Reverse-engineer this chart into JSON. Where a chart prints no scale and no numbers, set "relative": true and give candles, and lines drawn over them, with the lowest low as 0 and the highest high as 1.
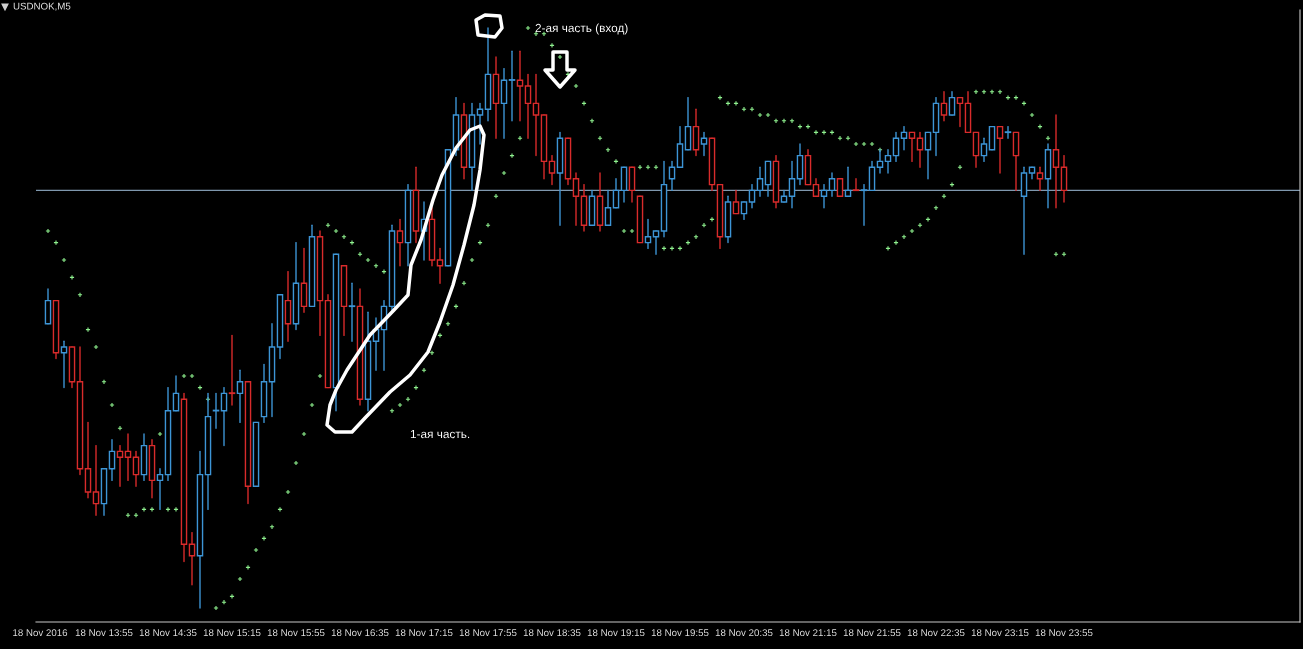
{
  "chart_data": {
    "type": "candlestick",
    "title": "USDNOK,M5",
    "relative": true,
    "tick_labels": "x",
    "categories": [
      "18 Nov 2016",
      null,
      null,
      null,
      null,
      null,
      null,
      null,
      "18 Nov 13:55",
      null,
      null,
      null,
      null,
      null,
      null,
      null,
      "18 Nov 14:35",
      null,
      null,
      null,
      null,
      null,
      null,
      null,
      "18 Nov 15:15",
      null,
      null,
      null,
      null,
      null,
      null,
      null,
      "18 Nov 15:55",
      null,
      null,
      null,
      null,
      null,
      null,
      null,
      "18 Nov 16:35",
      null,
      null,
      null,
      null,
      null,
      null,
      null,
      "18 Nov 17:15",
      null,
      null,
      null,
      null,
      null,
      null,
      null,
      "18 Nov 17:55",
      null,
      null,
      null,
      null,
      null,
      null,
      null,
      "18 Nov 18:35",
      null,
      null,
      null,
      null,
      null,
      null,
      null,
      "18 Nov 19:15",
      null,
      null,
      null,
      null,
      null,
      null,
      null,
      "18 Nov 19:55",
      null,
      null,
      null,
      null,
      null,
      null,
      null,
      "18 Nov 20:35",
      null,
      null,
      null,
      null,
      null,
      null,
      null,
      "18 Nov 21:15",
      null,
      null,
      null,
      null,
      null,
      null,
      null,
      "18 Nov 21:55",
      null,
      null,
      null,
      null,
      null,
      null,
      null,
      "18 Nov 22:35",
      null,
      null,
      null,
      null,
      null,
      null,
      null,
      "18 Nov 23:15",
      null,
      null,
      null,
      null,
      null,
      null,
      null,
      "18 Nov 23:55"
    ],
    "series": [
      {
        "type": "scatter",
        "color": "#8ef08e",
        "marker": "cross",
        "values": [
          null,
          0.65,
          0.63,
          0.6,
          0.57,
          0.54,
          0.48,
          0.45,
          0.39,
          0.35,
          0.31,
          0.16,
          0.16,
          0.17,
          0.17,
          0.3,
          0.17,
          0.17,
          0.4,
          0.4,
          0.38,
          0.36,
          0.0,
          0.01,
          0.02,
          0.05,
          0.07,
          0.1,
          0.12,
          0.14,
          0.17,
          0.2,
          0.25,
          0.3,
          0.35,
          0.4,
          0.66,
          0.65,
          0.64,
          0.63,
          0.61,
          0.6,
          0.59,
          0.58,
          0.34,
          0.35,
          0.36,
          0.38,
          0.41,
          0.44,
          0.47,
          0.49,
          0.52,
          0.56,
          0.6,
          0.63,
          0.66,
          0.71,
          0.75,
          0.78,
          0.81,
          1.0,
          0.99,
          0.99,
          0.97,
          0.95,
          0.92,
          0.9,
          0.87,
          0.84,
          0.81,
          0.79,
          0.77,
          0.65,
          0.65,
          0.76,
          0.76,
          0.76,
          0.62,
          0.62,
          0.62,
          0.63,
          0.64,
          0.66,
          0.67,
          0.88,
          0.87,
          0.87,
          0.86,
          0.86,
          0.85,
          0.85,
          0.84,
          0.84,
          0.84,
          0.83,
          0.83,
          0.82,
          0.82,
          0.82,
          0.81,
          0.81,
          0.8,
          0.8,
          0.8,
          0.79,
          0.62,
          0.63,
          0.64,
          0.65,
          0.66,
          0.67,
          0.69,
          0.71,
          0.73,
          0.76,
          null,
          0.89,
          0.89,
          0.89,
          0.89,
          0.88,
          0.88,
          0.87,
          0.85,
          0.83,
          0.81,
          0.61,
          0.61
        ]
      },
      {
        "ohlc": [
          null,
          [
            0.49,
            0.55,
            0.49,
            0.53
          ],
          [
            0.53,
            0.53,
            0.43,
            0.44
          ],
          [
            0.44,
            0.46,
            0.38,
            0.45
          ],
          [
            0.45,
            0.45,
            0.38,
            0.39
          ],
          [
            0.39,
            0.45,
            0.23,
            0.24
          ],
          [
            0.24,
            0.32,
            0.19,
            0.2
          ],
          [
            0.2,
            0.28,
            0.16,
            0.18
          ],
          [
            0.18,
            0.24,
            0.16,
            0.24
          ],
          [
            0.24,
            0.29,
            0.22,
            0.27
          ],
          [
            0.27,
            0.28,
            0.21,
            0.26
          ],
          [
            0.27,
            0.3,
            0.22,
            0.26
          ],
          [
            0.26,
            0.27,
            0.21,
            0.23
          ],
          [
            0.23,
            0.3,
            0.22,
            0.28
          ],
          [
            0.28,
            0.29,
            0.19,
            0.22
          ],
          [
            0.22,
            0.24,
            0.17,
            0.23
          ],
          [
            0.23,
            0.38,
            0.22,
            0.34
          ],
          [
            0.34,
            0.4,
            0.34,
            0.37
          ],
          [
            0.36,
            0.37,
            0.08,
            0.11
          ],
          [
            0.11,
            0.13,
            0.04,
            0.09
          ],
          [
            0.09,
            0.27,
            0,
            0.23
          ],
          [
            0.23,
            0.37,
            0.17,
            0.33
          ],
          [
            0.34,
            0.37,
            0.31,
            0.34
          ],
          [
            0.34,
            0.38,
            0.28,
            0.37
          ],
          [
            0.37,
            0.47,
            0.35,
            0.37
          ],
          [
            0.37,
            0.41,
            0.32,
            0.39
          ],
          [
            0.39,
            0.39,
            0.18,
            0.21
          ],
          [
            0.21,
            0.32,
            0.21,
            0.32
          ],
          [
            0.33,
            0.42,
            0.32,
            0.39
          ],
          [
            0.39,
            0.49,
            0.33,
            0.45
          ],
          [
            0.45,
            0.54,
            0.43,
            0.54
          ],
          [
            0.53,
            0.58,
            0.46,
            0.49
          ],
          [
            0.49,
            0.63,
            0.48,
            0.56
          ],
          [
            0.56,
            0.62,
            0.51,
            0.52
          ],
          [
            0.52,
            0.66,
            0.52,
            0.64
          ],
          [
            0.64,
            0.65,
            0.47,
            0.53
          ],
          [
            0.53,
            0.54,
            0.38,
            0.38
          ],
          [
            0.38,
            0.61,
            0.34,
            0.61
          ],
          [
            0.59,
            0.59,
            0.47,
            0.52
          ],
          [
            0.52,
            0.56,
            0.46,
            0.52
          ],
          [
            0.52,
            0.55,
            0.35,
            0.36
          ],
          [
            0.36,
            0.51,
            0.34,
            0.46
          ],
          [
            0.46,
            0.5,
            0.41,
            0.48
          ],
          [
            0.48,
            0.53,
            0.41,
            0.52
          ],
          [
            0.52,
            0.66,
            0.51,
            0.65
          ],
          [
            0.65,
            0.67,
            0.59,
            0.63
          ],
          [
            0.63,
            0.73,
            0.59,
            0.72
          ],
          [
            0.72,
            0.76,
            0.63,
            0.65
          ],
          [
            0.65,
            0.7,
            0.6,
            0.67
          ],
          [
            0.67,
            0.69,
            0.59,
            0.6
          ],
          [
            0.6,
            0.62,
            0.56,
            0.59
          ],
          [
            0.59,
            0.79,
            0.59,
            0.79
          ],
          [
            0.79,
            0.88,
            0.78,
            0.85
          ],
          [
            0.85,
            0.87,
            0.74,
            0.76
          ],
          [
            0.76,
            0.87,
            0.72,
            0.85
          ],
          [
            0.85,
            0.87,
            0.8,
            0.86
          ],
          [
            0.86,
            1,
            0.84,
            0.92
          ],
          [
            0.92,
            0.95,
            0.81,
            0.87
          ],
          [
            0.87,
            0.93,
            0.81,
            0.91
          ],
          [
            0.91,
            0.96,
            0.84,
            0.91
          ],
          [
            0.91,
            0.96,
            0.84,
            0.9
          ],
          [
            0.9,
            0.92,
            0.81,
            0.87
          ],
          [
            0.87,
            0.92,
            0.78,
            0.85
          ],
          [
            0.85,
            0.85,
            0.74,
            0.77
          ],
          [
            0.77,
            0.78,
            0.73,
            0.75
          ],
          [
            0.75,
            0.82,
            0.66,
            0.81
          ],
          [
            0.81,
            0.81,
            0.73,
            0.74
          ],
          [
            0.74,
            0.75,
            0.66,
            0.71
          ],
          [
            0.71,
            0.73,
            0.65,
            0.66
          ],
          [
            0.66,
            0.72,
            0.66,
            0.71
          ],
          [
            0.71,
            0.75,
            0.65,
            0.66
          ],
          [
            0.66,
            0.72,
            0.66,
            0.69
          ],
          [
            0.69,
            0.74,
            0.69,
            0.72
          ],
          [
            0.72,
            0.76,
            0.7,
            0.76
          ],
          [
            0.76,
            0.76,
            0.7,
            0.72
          ],
          [
            0.71,
            0.71,
            0.63,
            0.63
          ],
          [
            0.63,
            0.67,
            0.62,
            0.64
          ],
          [
            0.64,
            0.65,
            0.61,
            0.65
          ],
          [
            0.65,
            0.77,
            0.64,
            0.73
          ],
          [
            0.74,
            0.77,
            0.72,
            0.76
          ],
          [
            0.76,
            0.83,
            0.76,
            0.8
          ],
          [
            0.79,
            0.88,
            0.79,
            0.83
          ],
          [
            0.83,
            0.86,
            0.78,
            0.79
          ],
          [
            0.8,
            0.82,
            0.78,
            0.81
          ],
          [
            0.81,
            0.81,
            0.72,
            0.73
          ],
          [
            0.73,
            0.73,
            0.62,
            0.64
          ],
          [
            0.64,
            0.71,
            0.63,
            0.7
          ],
          [
            0.7,
            0.72,
            0.68,
            0.68
          ],
          [
            0.68,
            0.7,
            0.67,
            0.7
          ],
          [
            0.7,
            0.73,
            0.69,
            0.72
          ],
          [
            0.72,
            0.76,
            0.71,
            0.74
          ],
          [
            0.73,
            0.77,
            0.71,
            0.77
          ],
          [
            0.77,
            0.78,
            0.69,
            0.7
          ],
          [
            0.7,
            0.72,
            0.7,
            0.71
          ],
          [
            0.71,
            0.77,
            0.69,
            0.74
          ],
          [
            0.74,
            0.8,
            0.73,
            0.78
          ],
          [
            0.78,
            0.79,
            0.73,
            0.73
          ],
          [
            0.73,
            0.74,
            0.71,
            0.71
          ],
          [
            0.71,
            0.73,
            0.69,
            0.72
          ],
          [
            0.72,
            0.75,
            0.71,
            0.74
          ],
          [
            0.74,
            0.74,
            0.71,
            0.71
          ],
          [
            0.71,
            0.76,
            0.71,
            0.72
          ],
          [
            0.72,
            0.74,
            0.72,
            0.72
          ],
          [
            0.72,
            0.73,
            0.66,
            0.72
          ],
          [
            0.72,
            0.77,
            0.72,
            0.76
          ],
          [
            0.76,
            0.79,
            0.75,
            0.77
          ],
          [
            0.77,
            0.79,
            0.75,
            0.78
          ],
          [
            0.78,
            0.82,
            0.77,
            0.81
          ],
          [
            0.81,
            0.83,
            0.79,
            0.82
          ],
          [
            0.82,
            0.82,
            0.77,
            0.81
          ],
          [
            0.81,
            0.82,
            0.76,
            0.79
          ],
          [
            0.79,
            0.82,
            0.74,
            0.82
          ],
          [
            0.82,
            0.88,
            0.78,
            0.87
          ],
          [
            0.87,
            0.89,
            0.84,
            0.85
          ],
          [
            0.85,
            0.89,
            0.85,
            0.88
          ],
          [
            0.88,
            0.88,
            0.83,
            0.87
          ],
          [
            0.87,
            0.89,
            0.82,
            0.82
          ],
          [
            0.82,
            0.82,
            0.76,
            0.78
          ],
          [
            0.78,
            0.81,
            0.77,
            0.8
          ],
          [
            0.79,
            0.83,
            0.79,
            0.83
          ],
          [
            0.83,
            0.83,
            0.75,
            0.81
          ],
          [
            0.82,
            0.83,
            0.81,
            0.82
          ],
          [
            0.82,
            0.82,
            0.72,
            0.78
          ],
          [
            0.71,
            0.76,
            0.61,
            0.75
          ],
          [
            0.75,
            0.76,
            0.74,
            0.76
          ],
          [
            0.75,
            0.76,
            0.72,
            0.74
          ],
          [
            0.74,
            0.8,
            0.69,
            0.79
          ],
          [
            0.79,
            0.85,
            0.69,
            0.76
          ],
          [
            0.76,
            0.78,
            0.7,
            0.72
          ]
        ],
        "colors": [
          null,
          "#3d95d6",
          "#d92b2b",
          "#3d95d6",
          "#d92b2b",
          "#d92b2b",
          "#d92b2b",
          "#d92b2b",
          "#3d95d6",
          "#3d95d6",
          "#d92b2b",
          "#d92b2b",
          "#d92b2b",
          "#3d95d6",
          "#d92b2b",
          "#3d95d6",
          "#3d95d6",
          "#3d95d6",
          "#d92b2b",
          "#d92b2b",
          "#3d95d6",
          "#3d95d6",
          "#3d95d6",
          "#3d95d6",
          "#d92b2b",
          "#3d95d6",
          "#d92b2b",
          "#3d95d6",
          "#3d95d6",
          "#3d95d6",
          "#3d95d6",
          "#d92b2b",
          "#3d95d6",
          "#d92b2b",
          "#3d95d6",
          "#d92b2b",
          "#d92b2b",
          "#3d95d6",
          "#d92b2b",
          "#3d95d6",
          "#d92b2b",
          "#3d95d6",
          "#3d95d6",
          "#3d95d6",
          "#3d95d6",
          "#d92b2b",
          "#3d95d6",
          "#d92b2b",
          "#3d95d6",
          "#d92b2b",
          "#d92b2b",
          "#3d95d6",
          "#3d95d6",
          "#d92b2b",
          "#3d95d6",
          "#3d95d6",
          "#3d95d6",
          "#d92b2b",
          "#3d95d6",
          "#3d95d6",
          "#d92b2b",
          "#d92b2b",
          "#d92b2b",
          "#d92b2b",
          "#d92b2b",
          "#3d95d6",
          "#d92b2b",
          "#d92b2b",
          "#d92b2b",
          "#3d95d6",
          "#d92b2b",
          "#3d95d6",
          "#3d95d6",
          "#3d95d6",
          "#d92b2b",
          "#d92b2b",
          "#3d95d6",
          "#3d95d6",
          "#3d95d6",
          "#3d95d6",
          "#3d95d6",
          "#3d95d6",
          "#d92b2b",
          "#3d95d6",
          "#d92b2b",
          "#d92b2b",
          "#3d95d6",
          "#d92b2b",
          "#3d95d6",
          "#3d95d6",
          "#3d95d6",
          "#3d95d6",
          "#d92b2b",
          "#3d95d6",
          "#3d95d6",
          "#3d95d6",
          "#d92b2b",
          "#d92b2b",
          "#3d95d6",
          "#3d95d6",
          "#d92b2b",
          "#3d95d6",
          "#d92b2b",
          "#3d95d6",
          "#3d95d6",
          "#3d95d6",
          "#3d95d6",
          "#3d95d6",
          "#3d95d6",
          "#d92b2b",
          "#d92b2b",
          "#3d95d6",
          "#3d95d6",
          "#d92b2b",
          "#3d95d6",
          "#d92b2b",
          "#d92b2b",
          "#d92b2b",
          "#3d95d6",
          "#3d95d6",
          "#d92b2b",
          "#3d95d6",
          "#d92b2b",
          "#3d95d6",
          "#3d95d6",
          "#d92b2b",
          "#3d95d6",
          "#d92b2b",
          "#d92b2b"
        ]
      }
    ],
    "ref_lines": [
      {
        "axis": "y",
        "value": 0.72,
        "color": "#7f98ae"
      }
    ],
    "annotations": [
      "2-ая часть (вход)",
      "1-ая часть."
    ]
  }
}
